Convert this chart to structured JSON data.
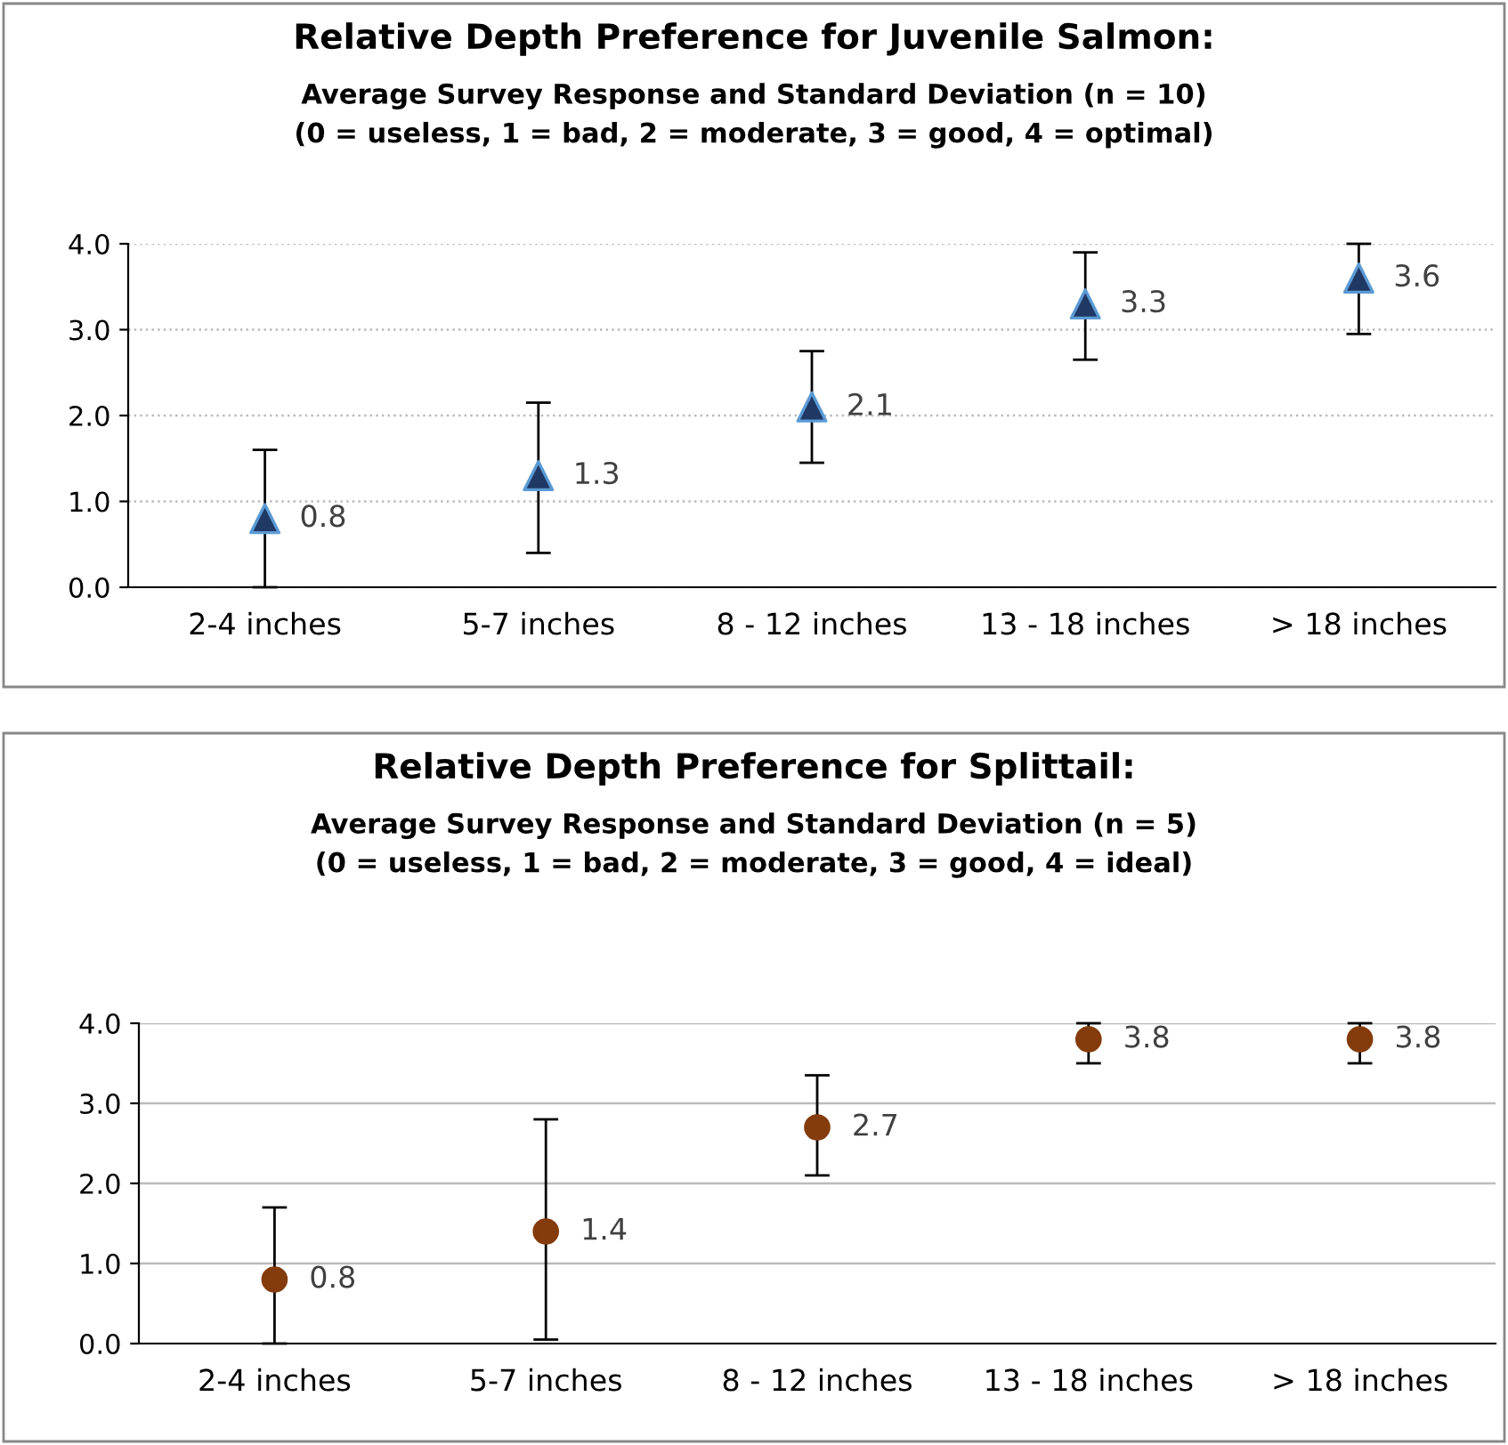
{
  "chart_data": [
    {
      "type": "scatter",
      "title": "Relative Depth Preference for Juvenile Salmon:",
      "subtitle": "Average Survey Response and Standard Deviation (n = 10)\n(0 = useless, 1 = bad, 2 = moderate, 3 = good, 4 = optimal)",
      "categories": [
        "2-4 inches",
        "5-7 inches",
        "8 - 12 inches",
        "13 - 18 inches",
        "> 18 inches"
      ],
      "series": [
        {
          "color": "#1f3864",
          "values": [
            0.8,
            1.3,
            2.1,
            3.3,
            3.6
          ],
          "errors": [
            [
              0,
              1.6
            ],
            [
              0.4,
              2.15
            ],
            [
              1.45,
              2.75
            ],
            [
              2.65,
              3.9
            ],
            [
              2.95,
              4.0
            ]
          ]
        }
      ],
      "ylim": [
        0,
        4
      ],
      "yticks": [
        {
          "value": 0,
          "label": "0.0"
        },
        {
          "value": 1,
          "label": "1.0"
        },
        {
          "value": 2,
          "label": "2.0"
        },
        {
          "value": 3,
          "label": "3.0"
        },
        {
          "value": 4,
          "label": "4.0"
        }
      ],
      "grid": "y",
      "marker": "triangle",
      "data_labels": true,
      "legend": false
    },
    {
      "type": "scatter",
      "title": "Relative Depth Preference for Splittail:",
      "subtitle": "Average Survey Response and Standard Deviation (n = 5)\n(0 = useless, 1 = bad, 2 = moderate, 3 = good, 4 = ideal)",
      "categories": [
        "2-4 inches",
        "5-7 inches",
        "8 - 12 inches",
        "13 - 18 inches",
        "> 18 inches"
      ],
      "series": [
        {
          "color": "#843c0c",
          "values": [
            0.8,
            1.4,
            2.7,
            3.8,
            3.8
          ],
          "errors": [
            [
              0,
              1.7
            ],
            [
              0.05,
              2.8
            ],
            [
              2.1,
              3.35
            ],
            [
              3.5,
              4.0
            ],
            [
              3.5,
              4.0
            ]
          ]
        }
      ],
      "ylim": [
        0,
        4
      ],
      "yticks": [
        {
          "value": 0,
          "label": "0.0"
        },
        {
          "value": 1,
          "label": "1.0"
        },
        {
          "value": 2,
          "label": "2.0"
        },
        {
          "value": 3,
          "label": "3.0"
        },
        {
          "value": 4,
          "label": "4.0"
        }
      ],
      "grid": "y",
      "marker": "circle",
      "data_labels": true,
      "legend": false
    }
  ]
}
